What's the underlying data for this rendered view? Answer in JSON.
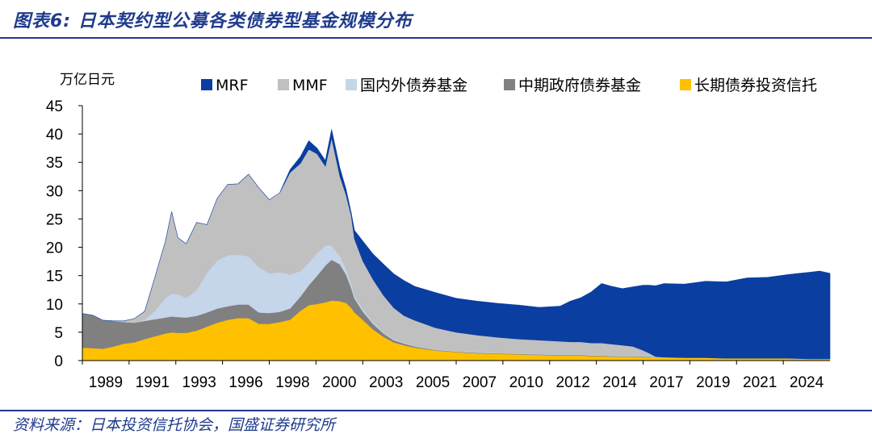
{
  "header": {
    "title": "图表6:  日本契约型公募各类债券型基金规模分布"
  },
  "footer": {
    "source": "资料来源：日本投资信托协会，国盛证券研究所"
  },
  "chart_data": {
    "type": "area",
    "stacked": true,
    "ylabel": "万亿日元",
    "ylim": [
      0,
      45
    ],
    "yticks": [
      0,
      5,
      10,
      15,
      20,
      25,
      30,
      35,
      40,
      45
    ],
    "xlim": [
      1989.0,
      2025.0
    ],
    "xtick_labels": [
      "1989",
      "1991",
      "1993",
      "1996",
      "1998",
      "2000",
      "2003",
      "2005",
      "2007",
      "2010",
      "2012",
      "2014",
      "2017",
      "2019",
      "2021",
      "2024"
    ],
    "legend_position": "top",
    "grid": false,
    "x": [
      1989.0,
      1989.5,
      1990.0,
      1990.5,
      1991.0,
      1991.5,
      1992.0,
      1992.5,
      1993.0,
      1993.3,
      1993.6,
      1994.0,
      1994.5,
      1995.0,
      1995.5,
      1996.0,
      1996.5,
      1997.0,
      1997.5,
      1998.0,
      1998.5,
      1999.0,
      1999.5,
      1999.9,
      2000.3,
      2000.7,
      2001.0,
      2001.4,
      2001.7,
      2001.95,
      2002.1,
      2002.5,
      2003.0,
      2003.5,
      2004.0,
      2004.5,
      2005.0,
      2006.0,
      2007.0,
      2008.0,
      2009.0,
      2010.0,
      2011.0,
      2012.0,
      2012.5,
      2013.0,
      2013.5,
      2014.0,
      2014.5,
      2015.0,
      2015.5,
      2016.0,
      2016.3,
      2016.6,
      2017.0,
      2018.0,
      2019.0,
      2020.0,
      2021.0,
      2022.0,
      2023.0,
      2024.0,
      2024.5,
      2025.0
    ],
    "series": [
      {
        "name": "长期债券投资信托",
        "color": "#FFC000",
        "values": [
          2.3,
          2.2,
          2.1,
          2.5,
          3.0,
          3.2,
          3.8,
          4.3,
          4.8,
          5.0,
          4.9,
          4.9,
          5.3,
          6.0,
          6.7,
          7.2,
          7.5,
          7.5,
          6.5,
          6.5,
          6.8,
          7.2,
          8.8,
          9.8,
          10.0,
          10.3,
          10.6,
          10.5,
          10.2,
          9.3,
          8.5,
          7.2,
          5.5,
          4.2,
          3.2,
          2.7,
          2.3,
          1.8,
          1.5,
          1.3,
          1.2,
          1.1,
          1.0,
          0.9,
          0.9,
          0.9,
          0.8,
          0.8,
          0.7,
          0.7,
          0.7,
          0.6,
          0.6,
          0.6,
          0.6,
          0.5,
          0.5,
          0.4,
          0.4,
          0.4,
          0.4,
          0.3,
          0.3,
          0.3
        ]
      },
      {
        "name": "中期政府债券基金",
        "color": "#808080",
        "values": [
          6.0,
          5.8,
          5.0,
          4.5,
          3.8,
          3.5,
          3.2,
          3.0,
          2.8,
          2.8,
          2.8,
          2.7,
          2.6,
          2.5,
          2.5,
          2.4,
          2.4,
          2.4,
          2.0,
          1.9,
          1.8,
          2.0,
          2.5,
          3.5,
          5.0,
          6.5,
          7.2,
          6.5,
          5.0,
          3.5,
          2.5,
          1.5,
          1.0,
          0.6,
          0.4,
          0.3,
          0.2,
          0.1,
          0.1,
          0.1,
          0.1,
          0.1,
          0.1,
          0.1,
          0.1,
          0.1,
          0.1,
          0.1,
          0.1,
          0.1,
          0.1,
          0.1,
          0.1,
          0.0,
          0.0,
          0.0,
          0.0,
          0.0,
          0.0,
          0.0,
          0.0,
          0.0,
          0.0,
          0.0
        ]
      },
      {
        "name": "国内外债券基金",
        "color": "#C5D5EA",
        "values": [
          0.0,
          0.0,
          0.0,
          0.0,
          0.0,
          0.0,
          0.2,
          1.5,
          3.5,
          4.0,
          4.0,
          3.5,
          4.5,
          7.0,
          8.5,
          9.0,
          8.8,
          8.5,
          8.0,
          7.0,
          7.0,
          6.0,
          4.5,
          4.0,
          4.0,
          3.5,
          2.5,
          1.5,
          1.0,
          0.7,
          0.5,
          0.4,
          0.3,
          0.2,
          0.2,
          0.1,
          0.1,
          0.1,
          0.1,
          0.1,
          0.1,
          0.1,
          0.1,
          0.1,
          0.1,
          0.1,
          0.1,
          0.1,
          0.1,
          0.1,
          0.1,
          0.1,
          0.1,
          0.0,
          0.0,
          0.0,
          0.0,
          0.0,
          0.0,
          0.0,
          0.0,
          0.0,
          0.0,
          0.0
        ]
      },
      {
        "name": "MMF",
        "color": "#C0C0C0",
        "values": [
          0.0,
          0.0,
          0.0,
          0.0,
          0.2,
          0.7,
          1.5,
          6.0,
          10.0,
          14.5,
          10.0,
          9.5,
          12.0,
          8.5,
          11.0,
          12.5,
          12.5,
          14.5,
          14.0,
          13.0,
          14.0,
          18.0,
          19.0,
          20.0,
          17.5,
          14.0,
          19.0,
          14.0,
          13.0,
          12.0,
          10.0,
          8.5,
          7.5,
          6.5,
          5.5,
          4.8,
          4.5,
          3.8,
          3.3,
          3.0,
          2.7,
          2.5,
          2.4,
          2.3,
          2.2,
          2.2,
          2.1,
          2.1,
          2.0,
          1.8,
          1.6,
          1.0,
          0.5,
          0.1,
          0.0,
          0.0,
          0.0,
          0.0,
          0.0,
          0.0,
          0.0,
          0.0,
          0.0,
          0.0
        ]
      },
      {
        "name": "MRF",
        "color": "#0A3EA0",
        "values": [
          0.0,
          0.0,
          0.0,
          0.0,
          0.0,
          0.0,
          0.0,
          0.0,
          0.0,
          0.0,
          0.0,
          0.0,
          0.0,
          0.0,
          0.0,
          0.0,
          0.0,
          0.0,
          0.0,
          0.0,
          0.0,
          0.5,
          1.2,
          1.5,
          1.0,
          1.0,
          1.5,
          1.5,
          1.0,
          0.5,
          1.5,
          3.5,
          4.5,
          5.5,
          6.0,
          6.2,
          6.0,
          6.2,
          6.0,
          6.0,
          6.0,
          6.0,
          5.8,
          6.2,
          7.2,
          7.8,
          9.0,
          10.5,
          10.2,
          10.0,
          10.5,
          11.5,
          12.0,
          12.5,
          13.0,
          13.0,
          13.5,
          13.5,
          14.2,
          14.3,
          14.8,
          15.3,
          15.5,
          15.1
        ]
      }
    ]
  }
}
